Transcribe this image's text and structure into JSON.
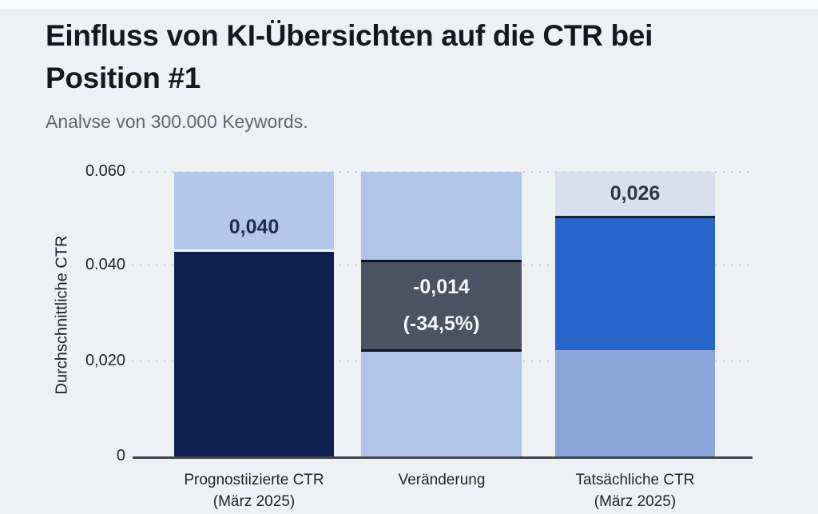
{
  "header": {
    "title": "Einfluss von KI-Übersichten auf die CTR bei Position #1",
    "subtitle": "Analvse von 300.000 Keywords."
  },
  "chart": {
    "y_axis_label": "Durchschnittliche CTR",
    "y_ticks": [
      "0.060",
      "0.040",
      "0,020",
      "0"
    ],
    "bars": [
      {
        "cat_line1": "Prognostiizierte CTR",
        "cat_line2": "(März 2025)",
        "value_label": "0,040"
      },
      {
        "cat_line1": "Veränderung",
        "cat_line2": "",
        "value_line1": "-0,014",
        "value_line2": "(-34,5%)"
      },
      {
        "cat_line1": "Tatsächliche CTR",
        "cat_line2": "(März 2025)",
        "value_label": "0,026"
      }
    ],
    "colors": {
      "background": "#eef1f4",
      "light_blue_bar": "#b3c7e9",
      "navy_bar": "#0e2150",
      "change_box_fill": "#4a5362",
      "change_box_border": "#10151e",
      "actual_cap": "#d9dfeb",
      "actual_blue": "#2765cb",
      "actual_lower_blue": "#8aa5d7",
      "gridline": "#c9ced5",
      "axis_line": "#42464c",
      "title_text": "#16181d",
      "subtitle_text": "#61676f"
    }
  },
  "chart_data": {
    "type": "bar",
    "title": "Einfluss von KI-Übersichten auf die CTR bei Position #1",
    "subtitle": "Analvse von 300.000 Keywords.",
    "categories": [
      "Prognostiizierte CTR (März 2025)",
      "Veränderung",
      "Tatsächliche CTR (März 2025)"
    ],
    "values": [
      0.04,
      -0.014,
      0.026
    ],
    "data_labels": [
      "0,040",
      "-0,014 (-34,5%)",
      "0,026"
    ],
    "xlabel": "",
    "ylabel": "Durchschnittliche CTR",
    "ylim": [
      0,
      0.06
    ],
    "yticks": [
      0,
      0.02,
      0.04,
      0.06
    ],
    "grid": "horizontal dotted",
    "legend": "none",
    "style_notes": "waterfall-style: bar 1 dark navy filled 0 to ~0.043 with light-blue remainder to 0.060; bar 2 full light-blue background with dark slate change box spanning ~0.022 to ~0.041; bar 3 bright blue segment ~0.022 to ~0.050, muted blue below 0.022, pale cap above with top rule at ~0.050"
  }
}
